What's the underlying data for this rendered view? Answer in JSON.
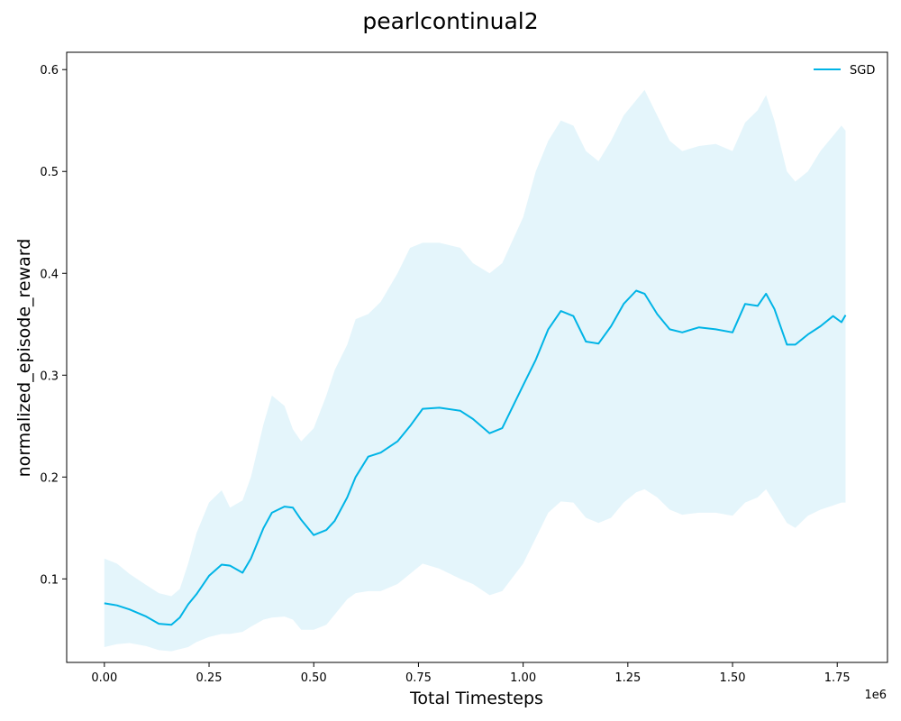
{
  "chart_data": {
    "type": "line",
    "title": "pearlcontinual2",
    "xlabel": "Total Timesteps",
    "ylabel": "normalized_episode_reward",
    "x_offset_label": "1e6",
    "xlim": [
      -0.09,
      1.87
    ],
    "ylim": [
      0.018,
      0.617
    ],
    "x_ticks": [
      0.0,
      0.25,
      0.5,
      0.75,
      1.0,
      1.25,
      1.5,
      1.75
    ],
    "x_tick_labels": [
      "0.00",
      "0.25",
      "0.50",
      "0.75",
      "1.00",
      "1.25",
      "1.50",
      "1.75"
    ],
    "y_ticks": [
      0.1,
      0.2,
      0.3,
      0.4,
      0.5,
      0.6
    ],
    "y_tick_labels": [
      "0.1",
      "0.2",
      "0.3",
      "0.4",
      "0.5",
      "0.6"
    ],
    "grid": false,
    "legend_position": "top-right",
    "series": [
      {
        "name": "SGD",
        "color": "#00b4e6",
        "band_color": "#e4f5fb",
        "x": [
          0.0,
          0.03,
          0.06,
          0.1,
          0.13,
          0.16,
          0.18,
          0.2,
          0.22,
          0.25,
          0.28,
          0.3,
          0.33,
          0.35,
          0.38,
          0.4,
          0.43,
          0.45,
          0.47,
          0.5,
          0.53,
          0.55,
          0.58,
          0.6,
          0.63,
          0.66,
          0.7,
          0.73,
          0.76,
          0.8,
          0.85,
          0.88,
          0.92,
          0.95,
          1.0,
          1.03,
          1.06,
          1.09,
          1.12,
          1.15,
          1.18,
          1.21,
          1.24,
          1.27,
          1.29,
          1.32,
          1.35,
          1.38,
          1.42,
          1.46,
          1.5,
          1.53,
          1.56,
          1.58,
          1.6,
          1.63,
          1.65,
          1.68,
          1.71,
          1.74,
          1.76,
          1.77
        ],
        "mean": [
          0.076,
          0.074,
          0.07,
          0.063,
          0.056,
          0.055,
          0.062,
          0.075,
          0.085,
          0.103,
          0.114,
          0.113,
          0.106,
          0.12,
          0.15,
          0.165,
          0.171,
          0.17,
          0.158,
          0.143,
          0.148,
          0.157,
          0.18,
          0.2,
          0.22,
          0.224,
          0.235,
          0.25,
          0.267,
          0.268,
          0.265,
          0.257,
          0.243,
          0.248,
          0.29,
          0.315,
          0.345,
          0.363,
          0.358,
          0.333,
          0.331,
          0.348,
          0.37,
          0.383,
          0.38,
          0.36,
          0.345,
          0.342,
          0.347,
          0.345,
          0.342,
          0.37,
          0.368,
          0.38,
          0.365,
          0.33,
          0.33,
          0.34,
          0.348,
          0.358,
          0.352,
          0.359
        ],
        "upper": [
          0.12,
          0.115,
          0.105,
          0.094,
          0.086,
          0.083,
          0.09,
          0.115,
          0.145,
          0.175,
          0.187,
          0.17,
          0.177,
          0.2,
          0.252,
          0.28,
          0.27,
          0.247,
          0.235,
          0.248,
          0.28,
          0.305,
          0.33,
          0.355,
          0.36,
          0.372,
          0.4,
          0.425,
          0.43,
          0.43,
          0.425,
          0.41,
          0.4,
          0.41,
          0.455,
          0.5,
          0.53,
          0.55,
          0.545,
          0.52,
          0.51,
          0.53,
          0.555,
          0.57,
          0.58,
          0.555,
          0.53,
          0.52,
          0.525,
          0.527,
          0.52,
          0.548,
          0.56,
          0.575,
          0.55,
          0.5,
          0.49,
          0.5,
          0.52,
          0.535,
          0.545,
          0.54
        ],
        "lower": [
          0.033,
          0.036,
          0.037,
          0.034,
          0.03,
          0.029,
          0.031,
          0.033,
          0.038,
          0.043,
          0.046,
          0.046,
          0.048,
          0.053,
          0.06,
          0.062,
          0.063,
          0.06,
          0.05,
          0.05,
          0.055,
          0.065,
          0.08,
          0.086,
          0.088,
          0.088,
          0.095,
          0.105,
          0.115,
          0.11,
          0.1,
          0.095,
          0.084,
          0.088,
          0.115,
          0.14,
          0.165,
          0.176,
          0.175,
          0.16,
          0.155,
          0.16,
          0.175,
          0.185,
          0.188,
          0.18,
          0.168,
          0.163,
          0.165,
          0.165,
          0.162,
          0.175,
          0.18,
          0.188,
          0.175,
          0.155,
          0.15,
          0.162,
          0.168,
          0.172,
          0.175,
          0.175
        ]
      }
    ]
  }
}
